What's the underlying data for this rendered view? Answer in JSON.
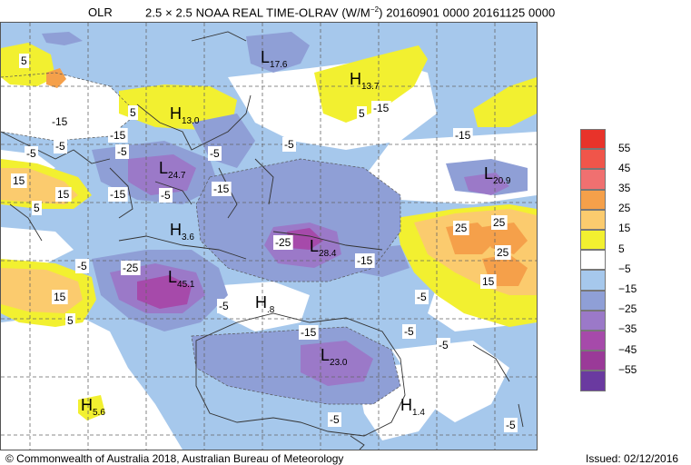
{
  "title": {
    "variable": "OLR",
    "description_main": "2.5 × 2.5 NOAA REAL TIME-OLRAV (W/M",
    "description_sup": "−2",
    "description_tail": ") 20160901 0000 20161125 0000"
  },
  "legend": {
    "levels": [
      "55",
      "45",
      "35",
      "25",
      "15",
      "5",
      "−5",
      "−15",
      "−25",
      "−35",
      "−45",
      "−55"
    ],
    "colors": [
      "#e8332a",
      "#f0554a",
      "#f07070",
      "#f5a04a",
      "#fbcb6e",
      "#f2f030",
      "#ffffff",
      "#a6c8ec",
      "#8f9fd6",
      "#9b79c8",
      "#a64aaa",
      "#9a3a98",
      "#6a3aa0"
    ]
  },
  "map": {
    "contour_labels": [
      "-15",
      "-5",
      "5",
      "-5",
      "5",
      "15",
      "15",
      "5",
      "-15",
      "-5",
      "-15",
      "-5",
      "-15",
      "-25",
      "-15",
      "-5",
      "-5",
      "-15",
      "5",
      "15",
      "-5",
      "-25",
      "-15",
      "-15",
      "25",
      "25",
      "25",
      "15",
      "-5",
      "-5",
      "-5",
      "-5",
      "-5",
      "-5",
      "5"
    ],
    "extrema": [
      {
        "type": "L",
        "value": "17.6"
      },
      {
        "type": "H",
        "value": "13.7"
      },
      {
        "type": "H",
        "value": "13.0"
      },
      {
        "type": "L",
        "value": "24.7"
      },
      {
        "type": "L",
        "value": "20.9"
      },
      {
        "type": "H",
        "value": "3.6"
      },
      {
        "type": "L",
        "value": "28.4"
      },
      {
        "type": "L",
        "value": "45.1"
      },
      {
        "type": "H",
        "value": ".8"
      },
      {
        "type": "L",
        "value": "23.0"
      },
      {
        "type": "H",
        "value": "5.6"
      },
      {
        "type": "H",
        "value": "1.4"
      }
    ]
  },
  "footer": {
    "copyright": "© Commonwealth of Australia 2018, Australian Bureau of Meteorology",
    "issued": "Issued: 02/12/2016"
  }
}
